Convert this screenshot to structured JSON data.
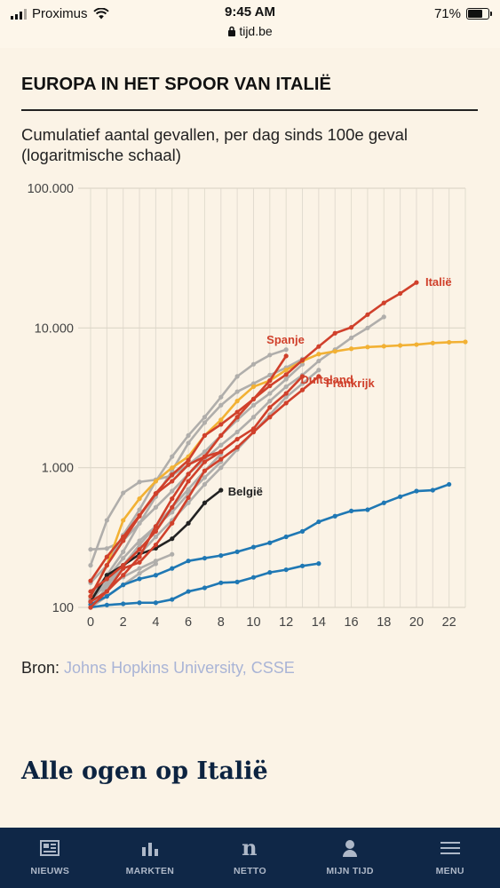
{
  "status_bar": {
    "carrier": "Proximus",
    "time": "9:45 AM",
    "url": "tijd.be",
    "battery": "71%",
    "battery_level": 0.71
  },
  "article": {
    "headline": "EUROPA IN HET SPOOR VAN ITALIË",
    "source_prefix": "Bron:",
    "source_link": "Johns Hopkins University, CSSE",
    "next_title": "Alle ogen op Italië"
  },
  "chart_data": {
    "type": "line",
    "title": "Cumulatief aantal gevallen, per dag sinds 100e geval (logaritmische schaal)",
    "y_scale": "log",
    "ylim": [
      100,
      100000
    ],
    "xlim": [
      0,
      23
    ],
    "y_ticks": [
      {
        "value": 100,
        "label": "100"
      },
      {
        "value": 1000,
        "label": "1.000"
      },
      {
        "value": 10000,
        "label": "10.000"
      },
      {
        "value": 100000,
        "label": "100.000"
      }
    ],
    "x_ticks": [
      0,
      2,
      4,
      6,
      8,
      10,
      12,
      14,
      16,
      18,
      20,
      22
    ],
    "grid": true,
    "colors": {
      "red": "#d0402b",
      "orange": "#f2b134",
      "grey": "#b0aeab",
      "black": "#222222",
      "blue": "#1f78b4"
    },
    "series": [
      {
        "name": "",
        "color": "grey",
        "values": [
          260,
          264,
          300,
          400,
          520,
          680,
          900,
          1150,
          1450,
          1800,
          2300,
          3000,
          3800,
          4600,
          5800,
          7000,
          8500,
          10000,
          12000
        ]
      },
      {
        "name": "",
        "color": "grey",
        "values": [
          120,
          170,
          250,
          400,
          620,
          950,
          1500,
          2100,
          2800,
          3500,
          4000,
          4600,
          5200,
          6000
        ]
      },
      {
        "name": "",
        "color": "grey",
        "values": [
          150,
          200,
          330,
          500,
          800,
          1200,
          1700,
          2300,
          3200,
          4500,
          5500,
          6400,
          7000
        ]
      },
      {
        "name": "",
        "color": "grey",
        "values": [
          200,
          420,
          660,
          790,
          820,
          880,
          1050,
          1300,
          1700,
          2200,
          2800,
          3400,
          4300,
          5500
        ]
      },
      {
        "name": "",
        "color": "grey",
        "values": [
          100,
          140,
          200,
          280,
          380,
          520,
          700,
          950,
          1250
        ]
      },
      {
        "name": "",
        "color": "grey",
        "values": [
          115,
          160,
          225,
          300,
          380,
          480,
          650,
          850,
          1100
        ]
      },
      {
        "name": "",
        "color": "grey",
        "values": [
          110,
          150,
          200,
          240,
          320,
          420,
          560,
          760,
          1000,
          1350,
          1800,
          2400,
          3200,
          4000,
          5000
        ]
      },
      {
        "name": "",
        "color": "grey",
        "values": [
          120,
          140,
          165,
          190,
          215,
          240
        ]
      },
      {
        "name": "",
        "color": "grey",
        "values": [
          100,
          120,
          145,
          175,
          205
        ]
      },
      {
        "name": "Italië",
        "color": "red",
        "values": [
          155,
          230,
          320,
          455,
          655,
          890,
          1130,
          1700,
          2040,
          2500,
          3100,
          3850,
          4640,
          5880,
          7370,
          9170,
          10100,
          12460,
          15110,
          17660,
          21160
        ]
      },
      {
        "name": "Spanje",
        "color": "red",
        "values": [
          110,
          130,
          170,
          230,
          380,
          600,
          900,
          1200,
          1700,
          2300,
          3100,
          4200,
          6300
        ]
      },
      {
        "name": "Duitsland",
        "color": "red",
        "values": [
          130,
          160,
          200,
          260,
          350,
          520,
          800,
          1100,
          1300,
          1600,
          1900,
          2700,
          3400,
          4500
        ]
      },
      {
        "name": "Frankrijk",
        "color": "red",
        "values": [
          100,
          130,
          190,
          210,
          280,
          400,
          610,
          950,
          1150,
          1400,
          1800,
          2300,
          2900,
          3600,
          4500
        ]
      },
      {
        "name": "",
        "color": "red",
        "values": [
          120,
          200,
          300,
          450,
          650,
          800,
          1050,
          1200,
          1300
        ]
      },
      {
        "name": "",
        "color": "orange",
        "values": [
          120,
          200,
          420,
          600,
          800,
          1000,
          1200,
          1700,
          2200,
          3000,
          3800,
          4200,
          5000,
          5800,
          6500,
          6800,
          7100,
          7300,
          7400,
          7500,
          7600,
          7800,
          7900,
          7950
        ]
      },
      {
        "name": "België",
        "color": "black",
        "values": [
          110,
          170,
          200,
          240,
          265,
          310,
          400,
          560,
          690
        ]
      },
      {
        "name": "",
        "color": "blue",
        "values": [
          105,
          120,
          145,
          160,
          170,
          190,
          215,
          225,
          235,
          250,
          270,
          290,
          320,
          350,
          410,
          450,
          490,
          500,
          560,
          620,
          680,
          690,
          760
        ]
      },
      {
        "name": "",
        "color": "blue",
        "values": [
          100,
          104,
          106,
          108,
          108,
          114,
          130,
          138,
          150,
          152,
          164,
          178,
          186,
          198,
          206
        ]
      }
    ]
  },
  "nav": [
    {
      "label": "NIEUWS",
      "icon": "news-icon"
    },
    {
      "label": "MARKTEN",
      "icon": "bar-chart-icon"
    },
    {
      "label": "NETTO",
      "icon": "netto-logo-icon"
    },
    {
      "label": "MIJN TIJD",
      "icon": "user-icon"
    },
    {
      "label": "MENU",
      "icon": "hamburger-icon"
    }
  ]
}
